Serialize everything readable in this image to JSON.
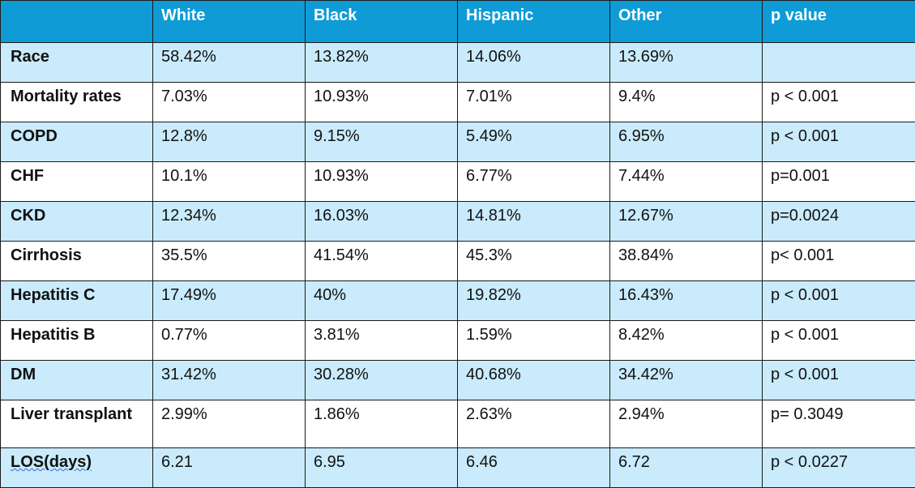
{
  "table": {
    "headers": [
      "",
      "White",
      "Black",
      "Hispanic",
      "Other",
      "p value"
    ],
    "rows": [
      {
        "label": "Race",
        "cells": [
          "58.42%",
          "13.82%",
          "14.06%",
          "13.69%",
          ""
        ]
      },
      {
        "label": "Mortality rates",
        "cells": [
          "7.03%",
          "10.93%",
          "7.01%",
          "9.4%",
          "p < 0.001"
        ]
      },
      {
        "label": "COPD",
        "cells": [
          "12.8%",
          "9.15%",
          "5.49%",
          "6.95%",
          "p < 0.001"
        ]
      },
      {
        "label": "CHF",
        "cells": [
          "10.1%",
          "10.93%",
          "6.77%",
          "7.44%",
          "p=0.001"
        ]
      },
      {
        "label": "CKD",
        "cells": [
          "12.34%",
          "16.03%",
          "14.81%",
          "12.67%",
          "p=0.0024"
        ]
      },
      {
        "label": "Cirrhosis",
        "cells": [
          "35.5%",
          "41.54%",
          "45.3%",
          "38.84%",
          "p< 0.001"
        ]
      },
      {
        "label": "Hepatitis C",
        "cells": [
          "17.49%",
          "40%",
          "19.82%",
          "16.43%",
          "p < 0.001"
        ]
      },
      {
        "label": "Hepatitis B",
        "cells": [
          "0.77%",
          "3.81%",
          "1.59%",
          "8.42%",
          "p < 0.001"
        ]
      },
      {
        "label": "DM",
        "cells": [
          "31.42%",
          "30.28%",
          "40.68%",
          "34.42%",
          "p < 0.001"
        ]
      },
      {
        "label": "Liver transplant",
        "cells": [
          "2.99%",
          "1.86%",
          "2.63%",
          "2.94%",
          "p= 0.3049"
        ]
      },
      {
        "label": "LOS(days)",
        "cells": [
          "6.21",
          "6.95",
          "6.46",
          " 6.72",
          "p < 0.0227"
        ]
      }
    ]
  },
  "colors": {
    "header_bg": "#0e9bd6",
    "header_text": "#ffffff",
    "band_light": "#c9ebfb",
    "band_white": "#ffffff",
    "border": "#1a1a1a"
  }
}
